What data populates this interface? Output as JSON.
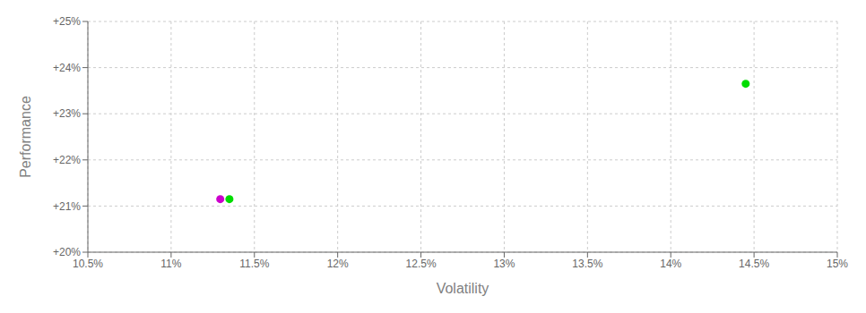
{
  "chart_data": {
    "type": "scatter",
    "xlabel": "Volatility",
    "ylabel": "Performance",
    "xlim": [
      0.105,
      0.15
    ],
    "ylim": [
      0.2,
      0.25
    ],
    "xticks": [
      {
        "value": 0.105,
        "label": "10.5%"
      },
      {
        "value": 0.11,
        "label": "11%"
      },
      {
        "value": 0.115,
        "label": "11.5%"
      },
      {
        "value": 0.12,
        "label": "12%"
      },
      {
        "value": 0.125,
        "label": "12.5%"
      },
      {
        "value": 0.13,
        "label": "13%"
      },
      {
        "value": 0.135,
        "label": "13.5%"
      },
      {
        "value": 0.14,
        "label": "14%"
      },
      {
        "value": 0.145,
        "label": "14.5%"
      },
      {
        "value": 0.15,
        "label": "15%"
      }
    ],
    "yticks": [
      {
        "value": 0.2,
        "label": "+20%"
      },
      {
        "value": 0.21,
        "label": "+21%"
      },
      {
        "value": 0.22,
        "label": "+22%"
      },
      {
        "value": 0.23,
        "label": "+23%"
      },
      {
        "value": 0.24,
        "label": "+24%"
      },
      {
        "value": 0.25,
        "label": "+25%"
      }
    ],
    "grid": true,
    "series": [
      {
        "color": "#cc00cc",
        "x": [
          0.11295
        ],
        "values": [
          0.2115
        ]
      },
      {
        "color": "#00dd00",
        "x": [
          0.1135,
          0.1445
        ],
        "values": [
          0.2115,
          0.2365
        ]
      }
    ]
  }
}
